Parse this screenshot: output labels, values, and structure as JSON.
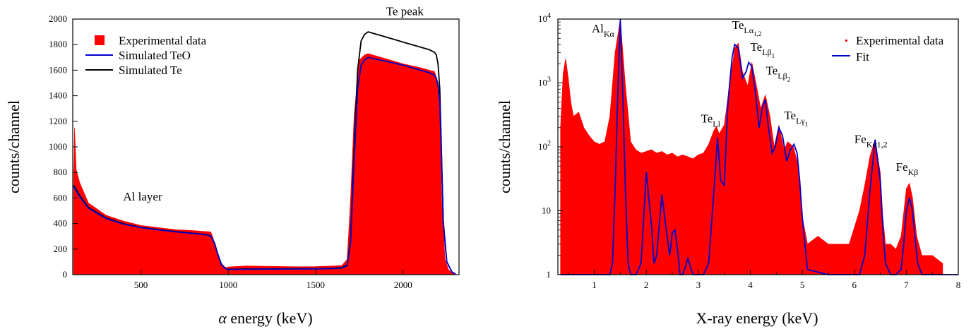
{
  "chart_data": [
    {
      "type": "area",
      "xlabel_symbol": "α",
      "xlabel_text": " energy (keV)",
      "ylabel": "counts/channel",
      "xlim": [
        110,
        2320
      ],
      "ylim": [
        0,
        2000
      ],
      "x_ticks": [
        500,
        1000,
        1500,
        2000
      ],
      "y_ticks": [
        0,
        200,
        400,
        600,
        800,
        1000,
        1200,
        1400,
        1600,
        1800,
        2000
      ],
      "grid": false,
      "legend_position": "top-left",
      "legend": {
        "experimental": "Experimental data",
        "teo": "Simulated TeO",
        "te": "Simulated Te"
      },
      "colors": {
        "experimental": "#ff0000",
        "teo": "#0000cc",
        "te": "#000000"
      },
      "annotations": [
        {
          "text": "Te peak",
          "x": 2010,
          "y": 2030
        },
        {
          "text": "Al layer",
          "x": 510,
          "y": 580
        }
      ],
      "series": [
        {
          "name": "Experimental data",
          "x": [
            115,
            120,
            130,
            150,
            200,
            300,
            400,
            500,
            600,
            700,
            800,
            850,
            900,
            910,
            920,
            940,
            960,
            980,
            990,
            1000,
            1100,
            1200,
            1300,
            1400,
            1500,
            1600,
            1650,
            1680,
            1700,
            1720,
            1750,
            1780,
            1800,
            1850,
            1900,
            2000,
            2100,
            2150,
            2180,
            2200,
            2210,
            2220,
            2240,
            2260,
            2280,
            2300
          ],
          "y": [
            720,
            1150,
            820,
            720,
            560,
            465,
            420,
            385,
            368,
            352,
            345,
            340,
            335,
            300,
            250,
            160,
            90,
            60,
            55,
            60,
            68,
            66,
            64,
            62,
            63,
            68,
            72,
            120,
            600,
            1250,
            1680,
            1720,
            1730,
            1710,
            1690,
            1650,
            1620,
            1600,
            1590,
            1500,
            1200,
            600,
            120,
            40,
            15,
            0
          ]
        },
        {
          "name": "Simulated TeO",
          "x": [
            115,
            150,
            200,
            300,
            400,
            500,
            600,
            700,
            800,
            850,
            880,
            900,
            920,
            940,
            960,
            980,
            1000,
            1100,
            1200,
            1300,
            1400,
            1500,
            1600,
            1650,
            1680,
            1700,
            1720,
            1740,
            1760,
            1780,
            1800,
            1900,
            2000,
            2100,
            2150,
            2180,
            2190,
            2200,
            2210,
            2220,
            2230,
            2250,
            2280,
            2300
          ],
          "y": [
            690,
            610,
            520,
            440,
            395,
            368,
            350,
            335,
            322,
            315,
            310,
            300,
            250,
            160,
            80,
            50,
            40,
            42,
            43,
            43,
            44,
            45,
            48,
            52,
            70,
            250,
            900,
            1450,
            1640,
            1680,
            1700,
            1670,
            1640,
            1600,
            1580,
            1560,
            1540,
            1480,
            1350,
            900,
            400,
            100,
            20,
            5
          ]
        },
        {
          "name": "Simulated Te",
          "x": [
            115,
            150,
            200,
            300,
            400,
            500,
            600,
            700,
            800,
            850,
            880,
            900,
            920,
            940,
            960,
            980,
            1000,
            1100,
            1200,
            1300,
            1400,
            1500,
            1600,
            1650,
            1680,
            1700,
            1720,
            1740,
            1760,
            1780,
            1800,
            1900,
            2000,
            2100,
            2150,
            2180,
            2190,
            2200,
            2210,
            2220,
            2230,
            2250,
            2280,
            2300
          ],
          "y": [
            700,
            620,
            525,
            445,
            398,
            370,
            352,
            337,
            324,
            317,
            312,
            302,
            252,
            162,
            82,
            52,
            42,
            44,
            45,
            45,
            46,
            47,
            50,
            55,
            75,
            280,
            1000,
            1600,
            1830,
            1880,
            1900,
            1860,
            1820,
            1780,
            1760,
            1740,
            1720,
            1650,
            1450,
            950,
            420,
            100,
            20,
            5
          ]
        }
      ]
    },
    {
      "type": "area",
      "xlabel": "X-ray energy (keV)",
      "ylabel": "counts/channel",
      "xlim": [
        0.3,
        8.0
      ],
      "ylim": [
        1,
        10000
      ],
      "y_scale": "log",
      "x_ticks": [
        1,
        2,
        3,
        4,
        5,
        6,
        7,
        8
      ],
      "y_ticks": [
        1,
        10,
        100,
        1000,
        10000
      ],
      "y_tick_labels": [
        {
          "base": "1",
          "sup": ""
        },
        {
          "base": "10",
          "sup": ""
        },
        {
          "base": "10",
          "sup": "2"
        },
        {
          "base": "10",
          "sup": "3"
        },
        {
          "base": "10",
          "sup": "4"
        }
      ],
      "grid": false,
      "legend_position": "top-right",
      "legend": {
        "experimental": "Experimental data",
        "fit": "Fit"
      },
      "colors": {
        "experimental": "#ff0000",
        "fit": "#0000cc"
      },
      "annotations": [
        {
          "base": "Al",
          "sub": "Kα",
          "x": 0.95,
          "y": 6200
        },
        {
          "base": "Te",
          "sub": "Lα",
          "subsub": "1,2",
          "x": 3.65,
          "y": 7000
        },
        {
          "base": "Te",
          "sub": "Lβ",
          "subsub": "1",
          "x": 4.0,
          "y": 3200
        },
        {
          "base": "Te",
          "sub": "Lβ",
          "subsub": "2",
          "x": 4.3,
          "y": 1350
        },
        {
          "base": "Te",
          "sub": "Lγ",
          "subsub": "1",
          "x": 4.65,
          "y": 270
        },
        {
          "base": "Te",
          "sub": "Ll",
          "x": 3.05,
          "y": 240
        },
        {
          "base": "Fe",
          "sub": "Kα1,2",
          "x": 6.0,
          "y": 115
        },
        {
          "base": "Fe",
          "sub": "Kβ",
          "x": 6.8,
          "y": 42
        }
      ],
      "series": [
        {
          "name": "Experimental data",
          "x": [
            0.35,
            0.4,
            0.45,
            0.5,
            0.55,
            0.6,
            0.7,
            0.8,
            0.9,
            1.0,
            1.1,
            1.2,
            1.3,
            1.4,
            1.5,
            1.6,
            1.7,
            1.8,
            1.9,
            2.0,
            2.1,
            2.2,
            2.3,
            2.4,
            2.5,
            2.6,
            2.7,
            2.8,
            2.9,
            3.0,
            3.1,
            3.2,
            3.3,
            3.35,
            3.4,
            3.5,
            3.6,
            3.7,
            3.77,
            3.85,
            3.95,
            4.03,
            4.12,
            4.2,
            4.29,
            4.38,
            4.46,
            4.55,
            4.65,
            4.72,
            4.83,
            4.9,
            5.0,
            5.1,
            5.3,
            5.5,
            5.7,
            5.9,
            6.1,
            6.2,
            6.3,
            6.4,
            6.5,
            6.55,
            6.6,
            6.7,
            6.8,
            6.9,
            7.0,
            7.06,
            7.12,
            7.2,
            7.3,
            7.5,
            7.7
          ],
          "y": [
            200,
            1400,
            2400,
            1200,
            500,
            300,
            350,
            200,
            150,
            120,
            110,
            120,
            300,
            3000,
            10000,
            900,
            120,
            90,
            80,
            85,
            90,
            80,
            85,
            75,
            80,
            70,
            75,
            70,
            65,
            75,
            80,
            110,
            180,
            210,
            160,
            220,
            900,
            3500,
            4200,
            1500,
            900,
            2100,
            900,
            400,
            650,
            300,
            100,
            220,
            90,
            120,
            100,
            60,
            8,
            3,
            4,
            3,
            3,
            3,
            10,
            25,
            70,
            130,
            40,
            8,
            3,
            3,
            2.5,
            4,
            22,
            27,
            16,
            4,
            2,
            2,
            1.5
          ]
        },
        {
          "name": "Fit",
          "x": [
            0.35,
            0.4,
            0.45,
            0.5,
            0.6,
            0.7,
            0.8,
            0.9,
            1.0,
            1.1,
            1.2,
            1.3,
            1.35,
            1.4,
            1.45,
            1.5,
            1.55,
            1.6,
            1.65,
            1.7,
            1.75,
            1.8,
            1.9,
            2.0,
            2.1,
            2.15,
            2.2,
            2.3,
            2.4,
            2.45,
            2.5,
            2.55,
            2.6,
            2.65,
            2.7,
            2.75,
            2.8,
            2.85,
            2.9,
            3.0,
            3.1,
            3.2,
            3.3,
            3.37,
            3.43,
            3.5,
            3.57,
            3.65,
            3.7,
            3.77,
            3.85,
            3.92,
            3.97,
            4.03,
            4.1,
            4.17,
            4.23,
            4.29,
            4.35,
            4.42,
            4.48,
            4.55,
            4.62,
            4.7,
            4.77,
            4.84,
            4.9,
            4.95,
            5.0,
            5.05,
            5.1,
            5.5,
            5.9,
            6.0,
            6.1,
            6.2,
            6.3,
            6.4,
            6.5,
            6.55,
            6.6,
            6.7,
            6.8,
            6.9,
            6.95,
            7.0,
            7.06,
            7.12,
            7.18,
            7.22,
            7.3,
            7.6,
            8.0
          ],
          "y": [
            1,
            1,
            1,
            1,
            1,
            1,
            1,
            1,
            1,
            1,
            1,
            1,
            1.5,
            20,
            600,
            10000,
            600,
            20,
            1.5,
            1,
            1,
            1,
            1.5,
            40,
            6,
            1.5,
            2,
            18,
            4,
            2,
            4.5,
            5,
            2.5,
            1,
            1,
            1.3,
            1.8,
            1.3,
            1,
            1,
            1,
            1.5,
            20,
            140,
            30,
            25,
            500,
            2500,
            4000,
            3500,
            1200,
            1500,
            2100,
            1800,
            700,
            200,
            400,
            550,
            200,
            80,
            100,
            200,
            150,
            60,
            90,
            110,
            80,
            30,
            8,
            3,
            1.2,
            1,
            1,
            1,
            1,
            2,
            20,
            130,
            30,
            5,
            1.5,
            1,
            1,
            1.2,
            3,
            10,
            16,
            10,
            3,
            1.5,
            1,
            1,
            1
          ]
        }
      ]
    }
  ]
}
